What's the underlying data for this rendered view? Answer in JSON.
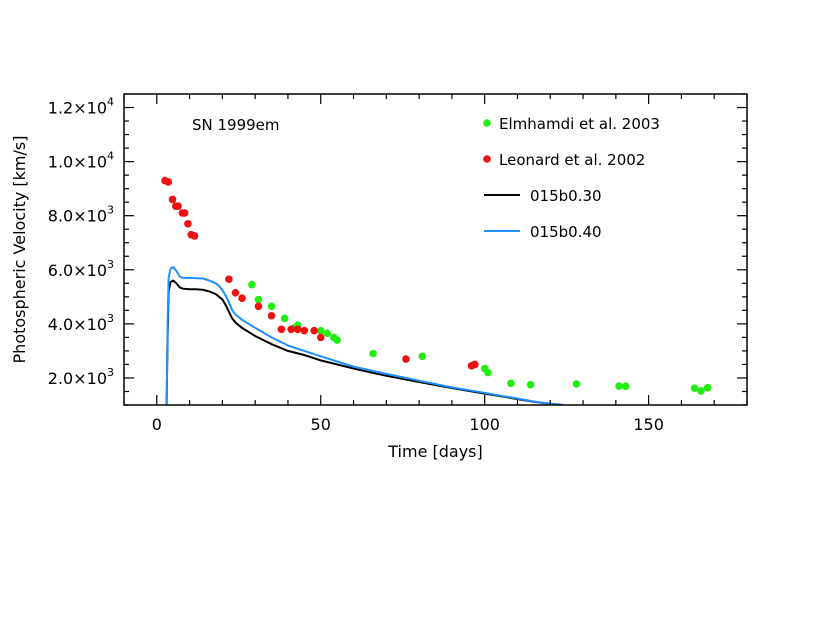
{
  "chart_data": {
    "type": "scatter",
    "title": "SN 1999em",
    "xlabel": "Time [days]",
    "ylabel": "Photospheric Velocity [km/s]",
    "xlim": [
      -10,
      180
    ],
    "ylim": [
      1000,
      12500
    ],
    "x_ticks": [
      0,
      50,
      100,
      150
    ],
    "y_ticks": [
      {
        "value": 2000,
        "mantissa": "2.0×10",
        "exp": "3"
      },
      {
        "value": 4000,
        "mantissa": "4.0×10",
        "exp": "3"
      },
      {
        "value": 6000,
        "mantissa": "6.0×10",
        "exp": "3"
      },
      {
        "value": 8000,
        "mantissa": "8.0×10",
        "exp": "3"
      },
      {
        "value": 10000,
        "mantissa": "1.0×10",
        "exp": "4"
      },
      {
        "value": 12000,
        "mantissa": "1.2×10",
        "exp": "4"
      }
    ],
    "grid": false,
    "legend_position": "top-right",
    "series": [
      {
        "name": "Elmhamdi et al. 2003",
        "kind": "points",
        "color": "#22ee11",
        "x": [
          29,
          31,
          35,
          39,
          42,
          43,
          45,
          50,
          52,
          54,
          55,
          66,
          81,
          100,
          101,
          108,
          114,
          128,
          141,
          143,
          164,
          166,
          168
        ],
        "y": [
          5450,
          4900,
          4650,
          4200,
          3850,
          3950,
          3750,
          3750,
          3650,
          3500,
          3400,
          2900,
          2800,
          2350,
          2200,
          1800,
          1750,
          1780,
          1700,
          1690,
          1620,
          1520,
          1640
        ]
      },
      {
        "name": "Leonard et al. 2002",
        "kind": "points",
        "color": "#ee1111",
        "x": [
          2.5,
          3.5,
          4.8,
          5.8,
          6.5,
          7.8,
          8.5,
          9.5,
          10.5,
          11.5,
          22,
          24,
          26,
          31,
          35,
          38,
          41,
          43,
          45,
          48,
          50,
          76,
          96,
          97
        ],
        "y": [
          9300,
          9250,
          8600,
          8350,
          8350,
          8100,
          8100,
          7700,
          7300,
          7250,
          5650,
          5150,
          4950,
          4650,
          4300,
          3800,
          3800,
          3800,
          3750,
          3750,
          3500,
          2700,
          2450,
          2500
        ]
      },
      {
        "name": "015b0.30",
        "kind": "line",
        "color": "#000000",
        "x": [
          3,
          3.3,
          3.6,
          4.2,
          5,
          6,
          7,
          8,
          10,
          12,
          14,
          16,
          18,
          19,
          20,
          21,
          22,
          23,
          24,
          26,
          30,
          35,
          40,
          45,
          50,
          60,
          70,
          80,
          90,
          100,
          105,
          110,
          115,
          120,
          124
        ],
        "y": [
          1000,
          3500,
          5200,
          5550,
          5600,
          5500,
          5350,
          5300,
          5280,
          5280,
          5260,
          5200,
          5100,
          5000,
          4900,
          4700,
          4450,
          4200,
          4050,
          3850,
          3550,
          3250,
          3000,
          2850,
          2650,
          2350,
          2080,
          1850,
          1630,
          1420,
          1320,
          1220,
          1120,
          1040,
          1000
        ]
      },
      {
        "name": "015b0.40",
        "kind": "line",
        "color": "#1e90ff",
        "x": [
          3,
          3.3,
          3.6,
          4.2,
          5,
          6,
          7,
          8,
          10,
          12,
          14,
          16,
          18,
          19,
          20,
          21,
          22,
          23,
          24,
          26,
          30,
          35,
          40,
          45,
          50,
          60,
          70,
          80,
          90,
          100,
          105,
          110,
          115,
          120,
          124
        ],
        "y": [
          1000,
          4000,
          5700,
          6050,
          6100,
          5950,
          5750,
          5700,
          5700,
          5690,
          5680,
          5600,
          5500,
          5400,
          5250,
          5050,
          4800,
          4500,
          4350,
          4150,
          3850,
          3500,
          3200,
          3000,
          2800,
          2420,
          2150,
          1900,
          1650,
          1450,
          1340,
          1240,
          1130,
          1050,
          1000
        ]
      }
    ]
  }
}
